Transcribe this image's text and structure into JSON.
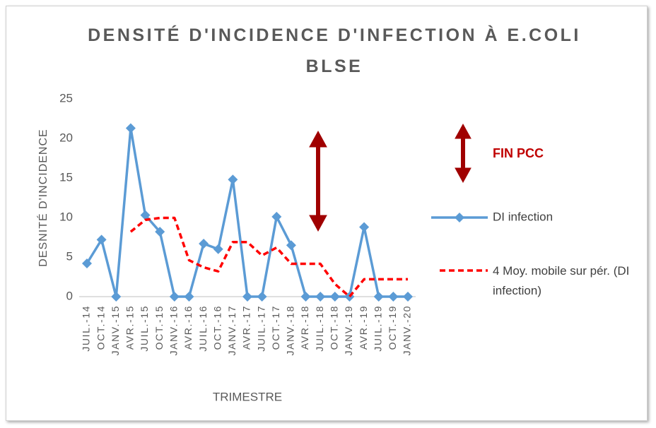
{
  "chart_data": {
    "type": "line",
    "title": "DENSITÉ D'INCIDENCE D'INFECTION À E.COLI BLSE",
    "y_label": "DESNITÉ D'INCIDENCE",
    "x_label": "TRIMESTRE",
    "annotation": "FIN PCC",
    "categories": [
      "JUIL.-14",
      "OCT.-14",
      "JANV.-15",
      "AVR.-15",
      "JUIL.-15",
      "OCT.-15",
      "JANV.-16",
      "AVR.-16",
      "JUIL.-16",
      "OCT.-16",
      "JANV.-17",
      "AVR.-17",
      "JUIL.-17",
      "OCT.-17",
      "JANV.-18",
      "AVR.-18",
      "JUIL.-18",
      "OCT.-18",
      "JANV.-19",
      "AVR.-19",
      "JUIL.-19",
      "OCT.-19",
      "JANV.-20"
    ],
    "series": [
      {
        "name": "DI infection",
        "color": "#5b9bd5",
        "marker": "diamond",
        "values": [
          4.2,
          7.2,
          0,
          21.3,
          10.3,
          8.2,
          0,
          0,
          6.7,
          6.0,
          14.8,
          0,
          0,
          10.1,
          6.5,
          0,
          0,
          0,
          0,
          8.8,
          0,
          0,
          0
        ]
      },
      {
        "name": "4 Moy. mobile sur pér. (DI infection)",
        "color": "#ff0000",
        "dashed": true,
        "values": [
          null,
          null,
          null,
          8.2,
          9.7,
          9.95,
          9.95,
          4.6,
          3.7,
          3.2,
          6.9,
          6.9,
          5.2,
          6.2,
          4.15,
          4.15,
          4.15,
          1.6,
          0,
          2.2,
          2.2,
          2.2,
          2.2
        ]
      }
    ],
    "ylim": [
      0,
      25
    ],
    "yticks": [
      0,
      5,
      10,
      15,
      20,
      25
    ],
    "grid": false
  }
}
